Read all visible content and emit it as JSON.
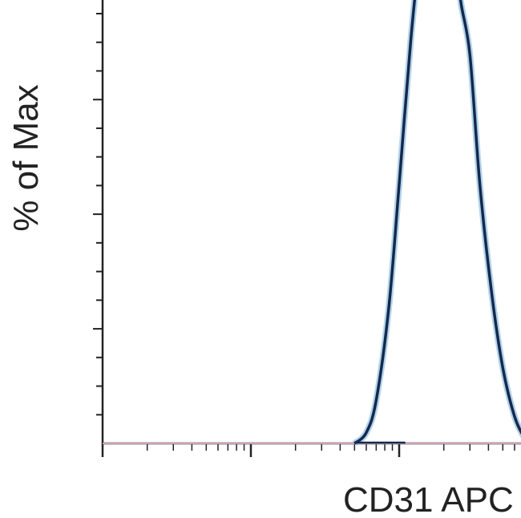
{
  "chart_data": {
    "type": "line",
    "title": "",
    "xlabel": "CD31 APC",
    "ylabel": "% of Max",
    "x_scale": "log",
    "xlim": [
      1,
      10000
    ],
    "ylim": [
      0,
      100
    ],
    "grid": false,
    "colors": {
      "axis": "#222222",
      "curve": "#14294d",
      "curve_glow": "#7fb6dc",
      "baseline": "#c9a0b4"
    },
    "series": [
      {
        "x": [
          50,
          60,
          70,
          85,
          100,
          120,
          140,
          160,
          175,
          190,
          200,
          210,
          220,
          240,
          260,
          300,
          350,
          420,
          500,
          600,
          700,
          750
        ],
        "values": [
          0,
          2,
          8,
          25,
          48,
          75,
          92,
          99,
          100,
          100,
          99,
          100,
          98,
          92,
          82,
          72,
          48,
          28,
          14,
          5,
          1,
          0
        ]
      },
      {
        "x": [
          1,
          10000
        ],
        "values": [
          0,
          0
        ]
      }
    ]
  }
}
